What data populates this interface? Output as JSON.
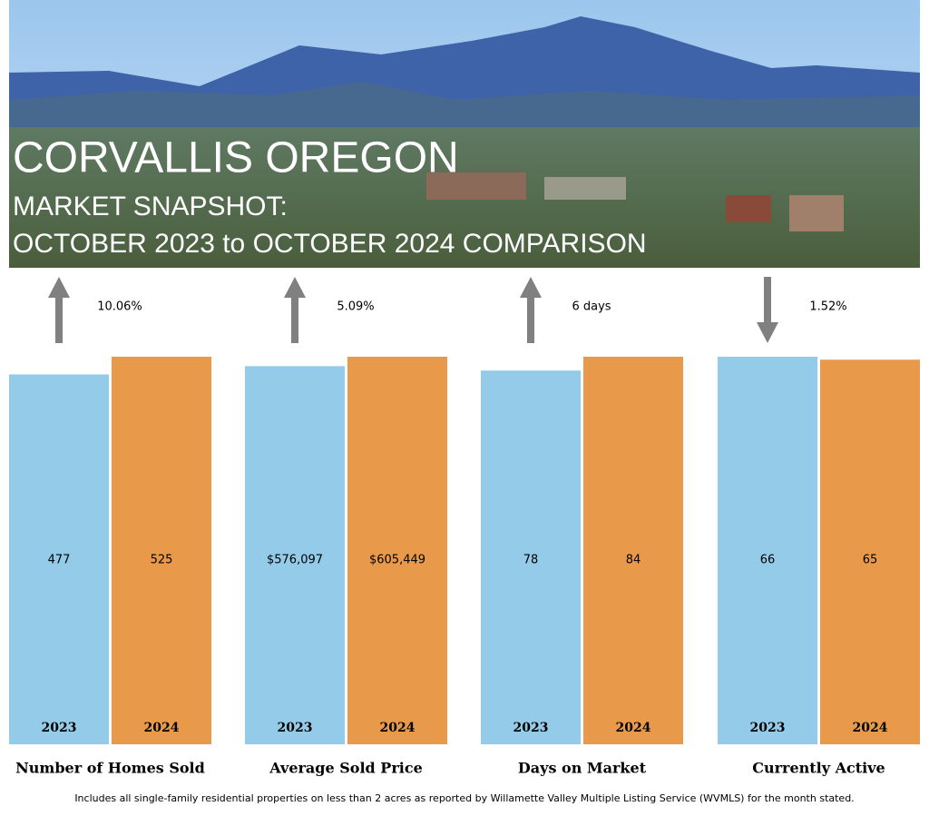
{
  "header": {
    "title": "CORVALLIS OREGON",
    "subtitle": "MARKET SNAPSHOT:",
    "comparison": "OCTOBER 2023 to OCTOBER 2024 COMPARISON"
  },
  "chart_data": [
    {
      "type": "bar",
      "title": "Number of Homes Sold",
      "categories": [
        "2023",
        "2024"
      ],
      "values": [
        477,
        525
      ],
      "value_labels": [
        "477",
        "525"
      ],
      "colors": [
        "#93cbe8",
        "#e89a4a"
      ],
      "change": "10.06%",
      "direction": "up"
    },
    {
      "type": "bar",
      "title": "Average Sold Price",
      "categories": [
        "2023",
        "2024"
      ],
      "values": [
        576097,
        605449
      ],
      "value_labels": [
        "$576,097",
        "$605,449"
      ],
      "colors": [
        "#93cbe8",
        "#e89a4a"
      ],
      "change": "5.09%",
      "direction": "up"
    },
    {
      "type": "bar",
      "title": "Days on Market",
      "categories": [
        "2023",
        "2024"
      ],
      "values": [
        78,
        84
      ],
      "value_labels": [
        "78",
        "84"
      ],
      "colors": [
        "#93cbe8",
        "#e89a4a"
      ],
      "change": "6 days",
      "direction": "up"
    },
    {
      "type": "bar",
      "title": "Currently Active",
      "categories": [
        "2023",
        "2024"
      ],
      "values": [
        66,
        65
      ],
      "value_labels": [
        "66",
        "65"
      ],
      "colors": [
        "#93cbe8",
        "#e89a4a"
      ],
      "change": "1.52%",
      "direction": "down"
    }
  ],
  "footnote": "Includes all single-family residential properties on less than 2 acres as reported by Willamette Valley Multiple Listing Service (WVMLS) for the month stated."
}
